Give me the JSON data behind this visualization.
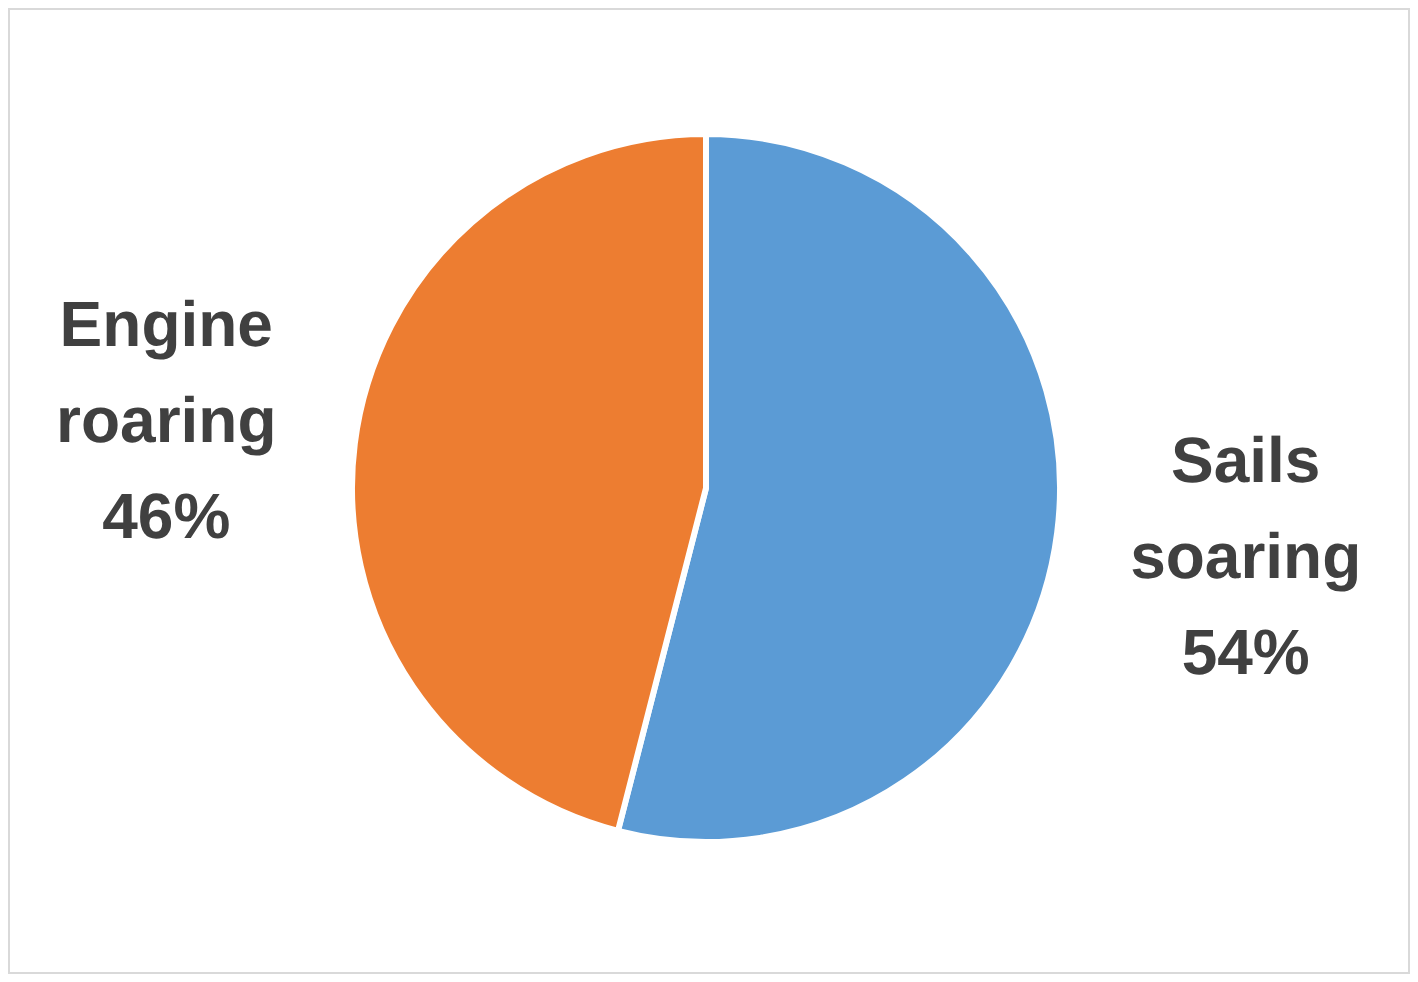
{
  "chart_data": {
    "type": "pie",
    "categories": [
      "Sails soaring",
      "Engine roaring"
    ],
    "values": [
      54,
      46
    ],
    "colors": [
      "#5b9bd5",
      "#ed7d31"
    ],
    "value_labels": [
      "54%",
      "46%"
    ]
  }
}
